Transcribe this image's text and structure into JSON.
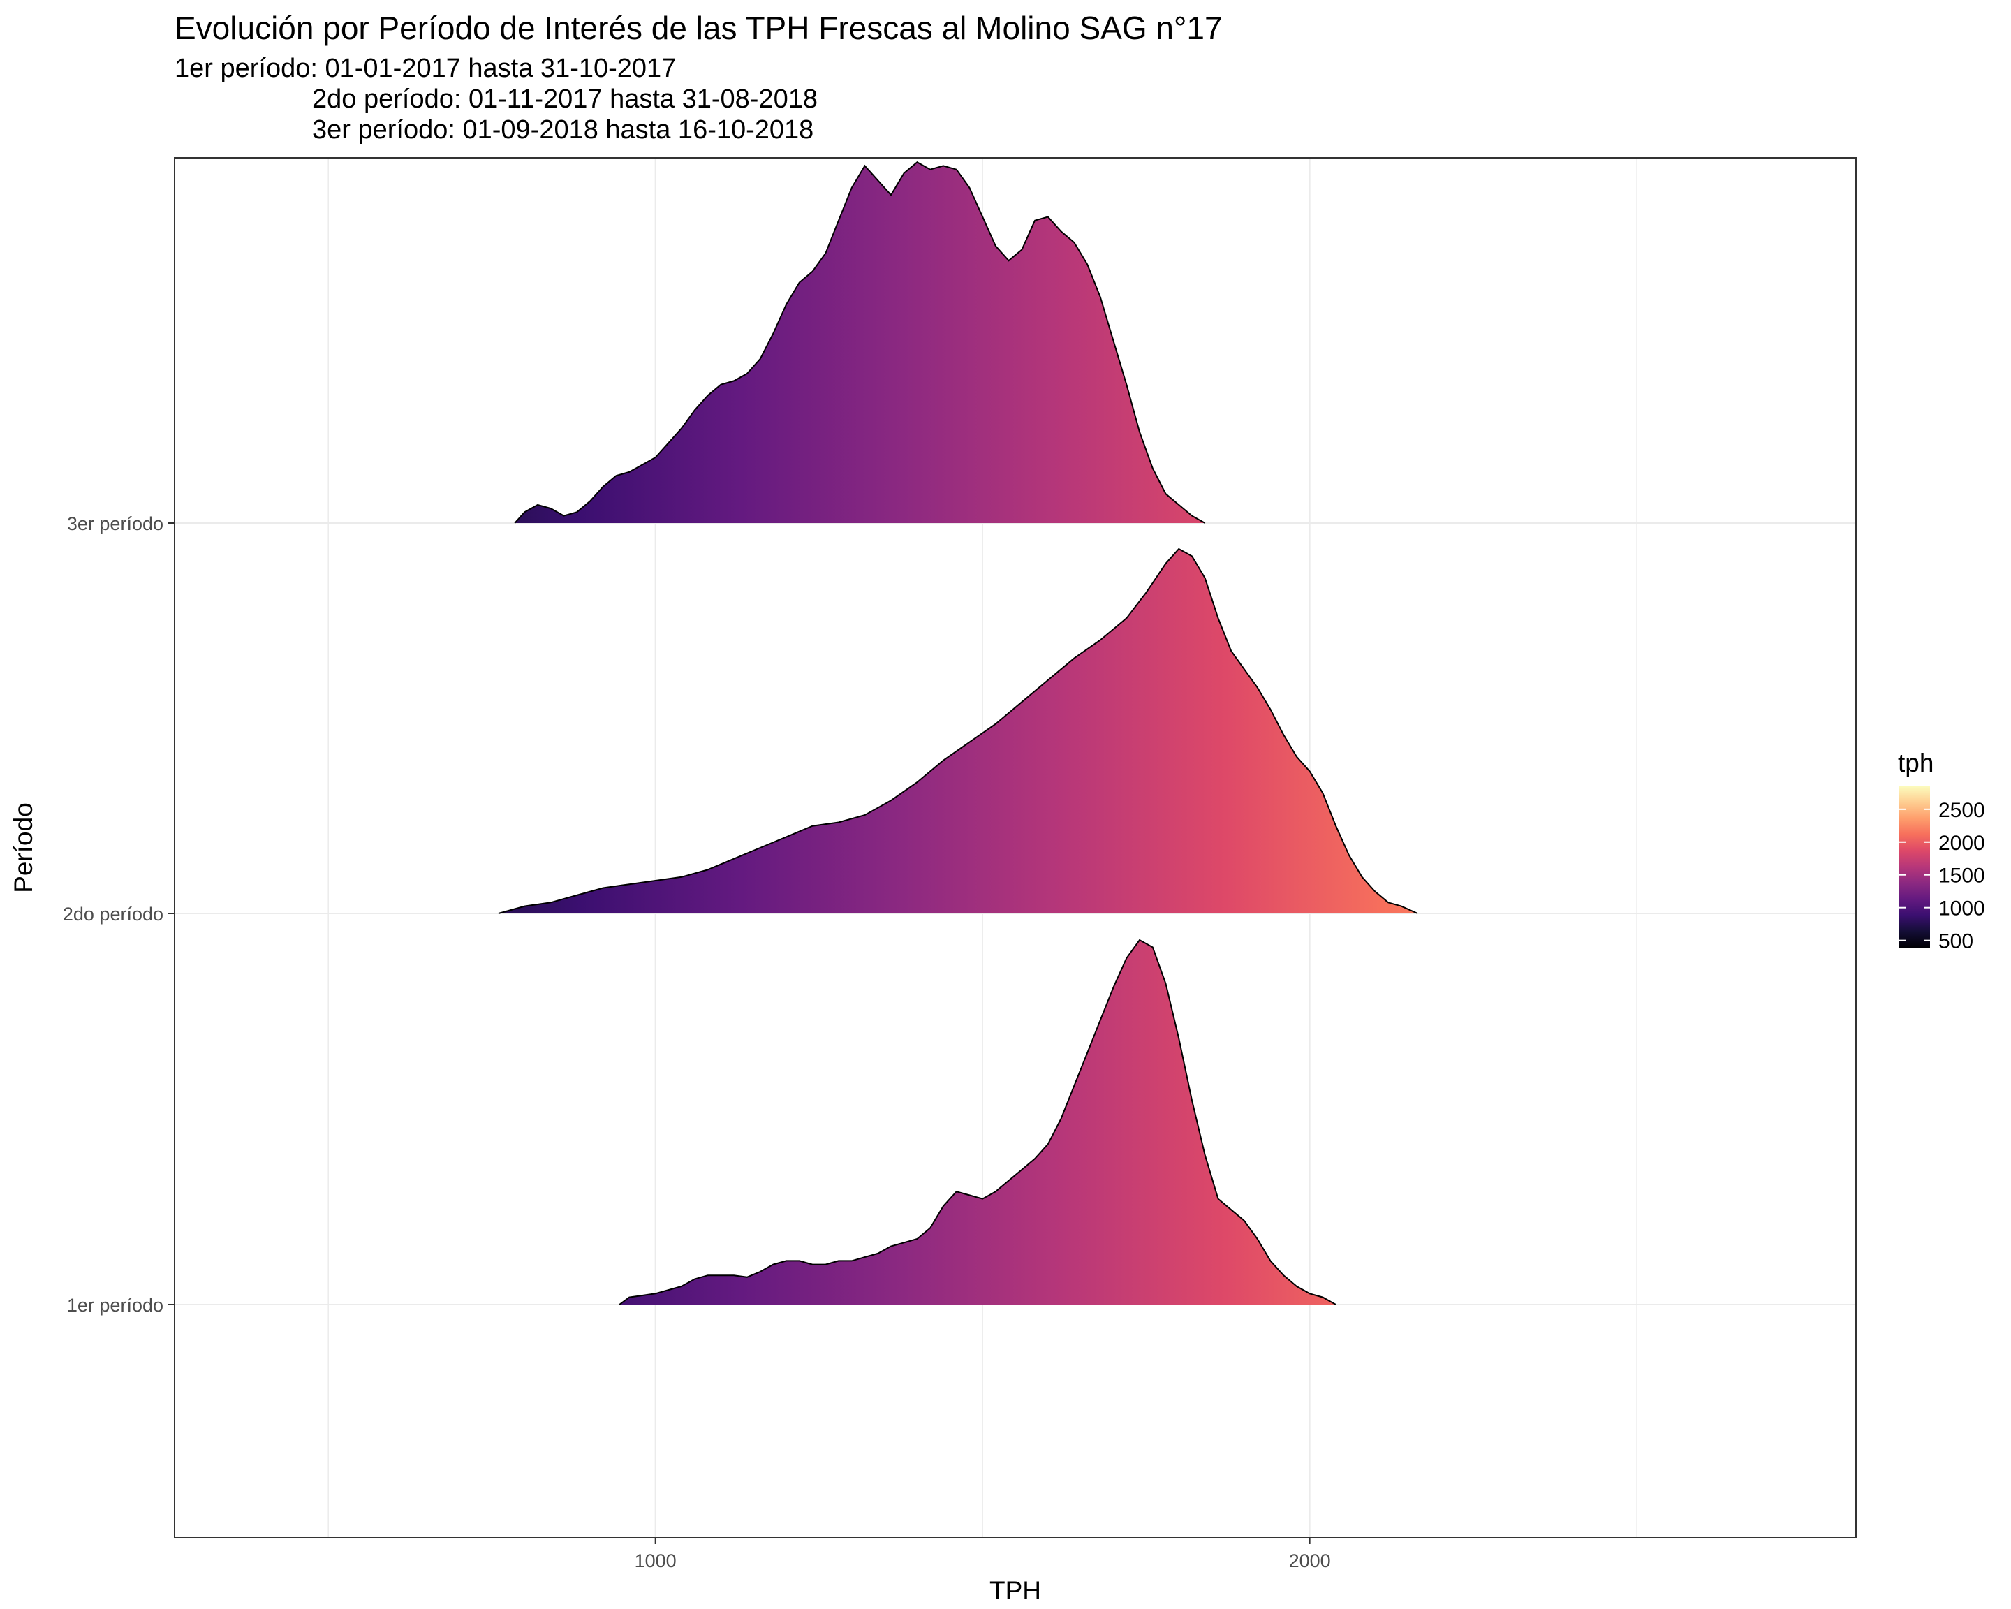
{
  "chart_data": {
    "type": "ridgeline",
    "title": "Evolución por Período de Interés de las TPH Frescas al Molino SAG n°17",
    "subtitle_lines": [
      "1er período: 01-01-2017 hasta 31-10-2017",
      "2do período: 01-11-2017 hasta 31-08-2018",
      "3er período: 01-09-2018 hasta 16-10-2018"
    ],
    "xlabel": "TPH",
    "ylabel": "Período",
    "xlim": [
      265,
      2835
    ],
    "x_ticks": [
      1000,
      2000
    ],
    "x_grid": [
      500,
      1000,
      1500,
      2000,
      2500
    ],
    "categories": [
      "1er período",
      "2do período",
      "3er período"
    ],
    "grid": true,
    "legend": {
      "title": "tph",
      "position": "right",
      "colormap": "magma",
      "range": [
        390,
        2860
      ],
      "ticks": [
        500,
        1000,
        1500,
        2000,
        2500
      ]
    },
    "series": [
      {
        "category": "1er período",
        "density_relative": [
          [
            945,
            0.0
          ],
          [
            960,
            0.02
          ],
          [
            980,
            0.025
          ],
          [
            1000,
            0.03
          ],
          [
            1020,
            0.04
          ],
          [
            1040,
            0.05
          ],
          [
            1060,
            0.07
          ],
          [
            1080,
            0.08
          ],
          [
            1100,
            0.08
          ],
          [
            1120,
            0.08
          ],
          [
            1140,
            0.075
          ],
          [
            1160,
            0.09
          ],
          [
            1180,
            0.11
          ],
          [
            1200,
            0.12
          ],
          [
            1220,
            0.12
          ],
          [
            1240,
            0.11
          ],
          [
            1260,
            0.11
          ],
          [
            1280,
            0.12
          ],
          [
            1300,
            0.12
          ],
          [
            1320,
            0.13
          ],
          [
            1340,
            0.14
          ],
          [
            1360,
            0.16
          ],
          [
            1380,
            0.17
          ],
          [
            1400,
            0.18
          ],
          [
            1420,
            0.21
          ],
          [
            1440,
            0.27
          ],
          [
            1460,
            0.31
          ],
          [
            1480,
            0.3
          ],
          [
            1500,
            0.29
          ],
          [
            1520,
            0.31
          ],
          [
            1540,
            0.34
          ],
          [
            1560,
            0.37
          ],
          [
            1580,
            0.4
          ],
          [
            1600,
            0.44
          ],
          [
            1620,
            0.51
          ],
          [
            1640,
            0.6
          ],
          [
            1660,
            0.69
          ],
          [
            1680,
            0.78
          ],
          [
            1700,
            0.87
          ],
          [
            1720,
            0.95
          ],
          [
            1740,
            1.0
          ],
          [
            1760,
            0.98
          ],
          [
            1780,
            0.88
          ],
          [
            1800,
            0.73
          ],
          [
            1820,
            0.56
          ],
          [
            1840,
            0.41
          ],
          [
            1860,
            0.29
          ],
          [
            1880,
            0.26
          ],
          [
            1900,
            0.23
          ],
          [
            1920,
            0.18
          ],
          [
            1940,
            0.12
          ],
          [
            1960,
            0.08
          ],
          [
            1980,
            0.05
          ],
          [
            2000,
            0.03
          ],
          [
            2020,
            0.02
          ],
          [
            2040,
            0.0
          ]
        ]
      },
      {
        "category": "2do período",
        "density_relative": [
          [
            760,
            0.0
          ],
          [
            800,
            0.02
          ],
          [
            840,
            0.03
          ],
          [
            880,
            0.05
          ],
          [
            920,
            0.07
          ],
          [
            960,
            0.08
          ],
          [
            1000,
            0.09
          ],
          [
            1040,
            0.1
          ],
          [
            1080,
            0.12
          ],
          [
            1120,
            0.15
          ],
          [
            1160,
            0.18
          ],
          [
            1200,
            0.21
          ],
          [
            1240,
            0.24
          ],
          [
            1280,
            0.25
          ],
          [
            1320,
            0.27
          ],
          [
            1360,
            0.31
          ],
          [
            1400,
            0.36
          ],
          [
            1440,
            0.42
          ],
          [
            1480,
            0.47
          ],
          [
            1520,
            0.52
          ],
          [
            1560,
            0.58
          ],
          [
            1600,
            0.64
          ],
          [
            1640,
            0.7
          ],
          [
            1680,
            0.75
          ],
          [
            1720,
            0.81
          ],
          [
            1750,
            0.88
          ],
          [
            1780,
            0.96
          ],
          [
            1800,
            1.0
          ],
          [
            1820,
            0.98
          ],
          [
            1840,
            0.92
          ],
          [
            1860,
            0.81
          ],
          [
            1880,
            0.72
          ],
          [
            1900,
            0.67
          ],
          [
            1920,
            0.62
          ],
          [
            1940,
            0.56
          ],
          [
            1960,
            0.49
          ],
          [
            1980,
            0.43
          ],
          [
            2000,
            0.39
          ],
          [
            2020,
            0.33
          ],
          [
            2040,
            0.24
          ],
          [
            2060,
            0.16
          ],
          [
            2080,
            0.1
          ],
          [
            2100,
            0.06
          ],
          [
            2120,
            0.03
          ],
          [
            2140,
            0.02
          ],
          [
            2165,
            0.0
          ]
        ]
      },
      {
        "category": "3er período",
        "density_relative": [
          [
            785,
            0.0
          ],
          [
            800,
            0.03
          ],
          [
            820,
            0.05
          ],
          [
            840,
            0.04
          ],
          [
            860,
            0.02
          ],
          [
            880,
            0.03
          ],
          [
            900,
            0.06
          ],
          [
            920,
            0.1
          ],
          [
            940,
            0.13
          ],
          [
            960,
            0.14
          ],
          [
            980,
            0.16
          ],
          [
            1000,
            0.18
          ],
          [
            1020,
            0.22
          ],
          [
            1040,
            0.26
          ],
          [
            1060,
            0.31
          ],
          [
            1080,
            0.35
          ],
          [
            1100,
            0.38
          ],
          [
            1120,
            0.39
          ],
          [
            1140,
            0.41
          ],
          [
            1160,
            0.45
          ],
          [
            1180,
            0.52
          ],
          [
            1200,
            0.6
          ],
          [
            1220,
            0.66
          ],
          [
            1240,
            0.69
          ],
          [
            1260,
            0.74
          ],
          [
            1280,
            0.83
          ],
          [
            1300,
            0.92
          ],
          [
            1320,
            0.98
          ],
          [
            1340,
            0.94
          ],
          [
            1360,
            0.9
          ],
          [
            1380,
            0.96
          ],
          [
            1400,
            0.99
          ],
          [
            1420,
            0.97
          ],
          [
            1440,
            0.98
          ],
          [
            1460,
            0.97
          ],
          [
            1480,
            0.92
          ],
          [
            1500,
            0.84
          ],
          [
            1520,
            0.76
          ],
          [
            1540,
            0.72
          ],
          [
            1560,
            0.75
          ],
          [
            1580,
            0.83
          ],
          [
            1600,
            0.84
          ],
          [
            1620,
            0.8
          ],
          [
            1640,
            0.77
          ],
          [
            1660,
            0.71
          ],
          [
            1680,
            0.62
          ],
          [
            1700,
            0.5
          ],
          [
            1720,
            0.38
          ],
          [
            1740,
            0.25
          ],
          [
            1760,
            0.15
          ],
          [
            1780,
            0.08
          ],
          [
            1800,
            0.05
          ],
          [
            1820,
            0.02
          ],
          [
            1840,
            0.0
          ]
        ]
      }
    ]
  }
}
